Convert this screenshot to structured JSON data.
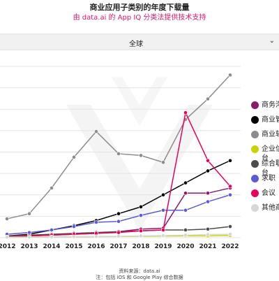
{
  "header": {
    "title": "商业应用子类别的年度下载量",
    "subtitle": "由 data.ai 的 App IQ 分类法提供技术支持"
  },
  "region_select": {
    "value": "全球",
    "icon": "chevron-down-icon"
  },
  "legend": [
    {
      "label": "商务沟",
      "color": "#8b1a6b"
    },
    {
      "label": "商业管",
      "color": "#000000"
    },
    {
      "label": "商业软",
      "color": "#8c8c8c"
    },
    {
      "label": "企业信\n台",
      "color": "#c9d400"
    },
    {
      "label": "综合职\n台",
      "color": "#4d4d4d"
    },
    {
      "label": "求职",
      "color": "#5b5bd6"
    },
    {
      "label": "会议",
      "color": "#e8005e"
    },
    {
      "label": "其他商",
      "color": "#d6d6d6"
    }
  ],
  "footer": {
    "source": "资料来源：data.ai",
    "note": "注：包括 iOS 和 Google Play 综合数据"
  },
  "chart_data": {
    "type": "line",
    "title": "商业应用子类别的年度下载量",
    "subtitle": "由 data.ai 的 App IQ 分类法提供技术支持",
    "xlabel": "",
    "ylabel": "",
    "x": [
      "2012",
      "2013",
      "2014",
      "2015",
      "2016",
      "2017",
      "2018",
      "2019",
      "2020",
      "2021",
      "2022"
    ],
    "ylim": [
      0,
      100
    ],
    "grid": true,
    "legend_position": "right",
    "series": [
      {
        "name": "商务沟",
        "color": "#8b1a6b",
        "values": [
          0.5,
          1,
          1.5,
          2,
          2.5,
          3.5,
          5,
          5.5,
          26,
          26,
          29
        ]
      },
      {
        "name": "商业管",
        "color": "#000000",
        "values": [
          1,
          2,
          4.5,
          7,
          10,
          14,
          18,
          25,
          32,
          39,
          45
        ]
      },
      {
        "name": "商业软",
        "color": "#8c8c8c",
        "values": [
          11,
          14,
          29,
          47,
          62,
          49,
          48,
          44,
          69,
          81,
          95
        ]
      },
      {
        "name": "企业信\n台",
        "color": "#c9d400",
        "values": [
          0.2,
          0.3,
          0.4,
          0.5,
          0.6,
          0.7,
          0.8,
          0.9,
          1,
          1,
          1.2
        ]
      },
      {
        "name": "综合职\n台",
        "color": "#4d4d4d",
        "values": [
          1,
          1.5,
          2,
          2.5,
          3,
          3.5,
          4,
          4.5,
          4.5,
          5,
          6.5
        ]
      },
      {
        "name": "求职",
        "color": "#5b5bd6",
        "values": [
          2,
          3,
          4.5,
          6.5,
          9,
          9.5,
          13,
          16,
          16,
          21,
          25
        ]
      },
      {
        "name": "会议",
        "color": "#e8005e",
        "values": [
          0.5,
          1,
          1.5,
          2,
          2.5,
          3,
          4,
          4.5,
          73,
          45,
          30
        ]
      },
      {
        "name": "其他商",
        "color": "#d6d6d6",
        "values": [
          0.3,
          0.4,
          0.5,
          0.6,
          0.7,
          0.8,
          1,
          1.2,
          1.5,
          1.8,
          2
        ]
      }
    ]
  }
}
